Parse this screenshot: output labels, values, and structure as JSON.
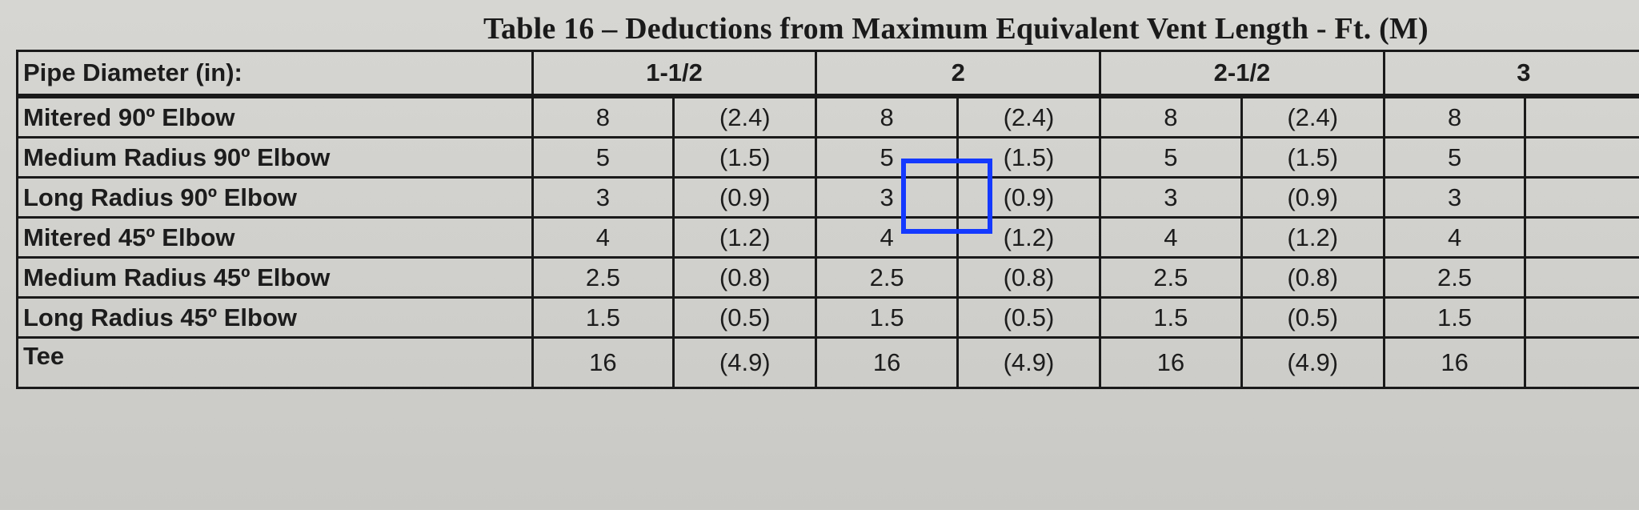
{
  "title": "Table 16 – Deductions from Maximum Equivalent Vent Length - Ft. (M)",
  "header": {
    "label": "Pipe Diameter (in):",
    "groups": [
      "1-1/2",
      "2",
      "2-1/2",
      "3"
    ]
  },
  "rows": [
    {
      "label": "Mitered 90º Elbow",
      "values": [
        "8",
        "(2.4)",
        "8",
        "(2.4)",
        "8",
        "(2.4)",
        "8"
      ]
    },
    {
      "label": "Medium Radius 90º Elbow",
      "values": [
        "5",
        "(1.5)",
        "5",
        "(1.5)",
        "5",
        "(1.5)",
        "5"
      ]
    },
    {
      "label": "Long Radius 90º Elbow",
      "values": [
        "3",
        "(0.9)",
        "3",
        "(0.9)",
        "3",
        "(0.9)",
        "3"
      ]
    },
    {
      "label": "Mitered 45º Elbow",
      "values": [
        "4",
        "(1.2)",
        "4",
        "(1.2)",
        "4",
        "(1.2)",
        "4"
      ]
    },
    {
      "label": "Medium Radius 45º Elbow",
      "values": [
        "2.5",
        "(0.8)",
        "2.5",
        "(0.8)",
        "2.5",
        "(0.8)",
        "2.5"
      ]
    },
    {
      "label": "Long Radius 45º Elbow",
      "values": [
        "1.5",
        "(0.5)",
        "1.5",
        "(0.5)",
        "1.5",
        "(0.5)",
        "1.5"
      ]
    },
    {
      "label": "Tee",
      "values": [
        "16",
        "(4.9)",
        "16",
        "(4.9)",
        "16",
        "(4.9)",
        "16"
      ]
    }
  ],
  "highlight": {
    "row": "Medium Radius 90º Elbow",
    "column": "2",
    "value": "5",
    "color": "#1439ff"
  }
}
